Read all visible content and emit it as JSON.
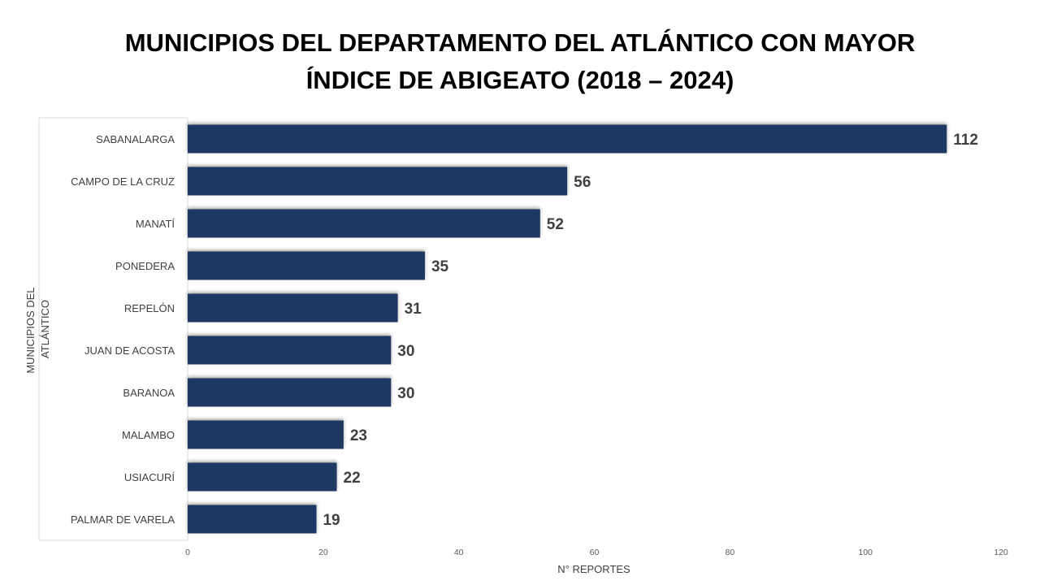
{
  "chart_data": {
    "type": "bar",
    "orientation": "horizontal",
    "title_line1": "MUNICIPIOS DEL DEPARTAMENTO DEL ATLÁNTICO CON MAYOR",
    "title_line2": "ÍNDICE DE ABIGEATO (2018 – 2024)",
    "categories": [
      "SABANALARGA",
      "CAMPO DE LA CRUZ",
      "MANATÍ",
      "PONEDERA",
      "REPELÓN",
      "JUAN DE ACOSTA",
      "BARANOA",
      "MALAMBO",
      "USIACURÍ",
      "PALMAR DE VARELA"
    ],
    "values": [
      112,
      56,
      52,
      35,
      31,
      30,
      30,
      23,
      22,
      19
    ],
    "xlabel": "N° REPORTES",
    "ylabel_line1": "MUNICIPIOS DEL",
    "ylabel_line2": "ATLÁNTICO",
    "xlim": [
      0,
      120
    ],
    "xticks": [
      0,
      20,
      40,
      60,
      80,
      100,
      120
    ],
    "grid": false,
    "legend": "none",
    "bar_color": "#1f3864"
  }
}
